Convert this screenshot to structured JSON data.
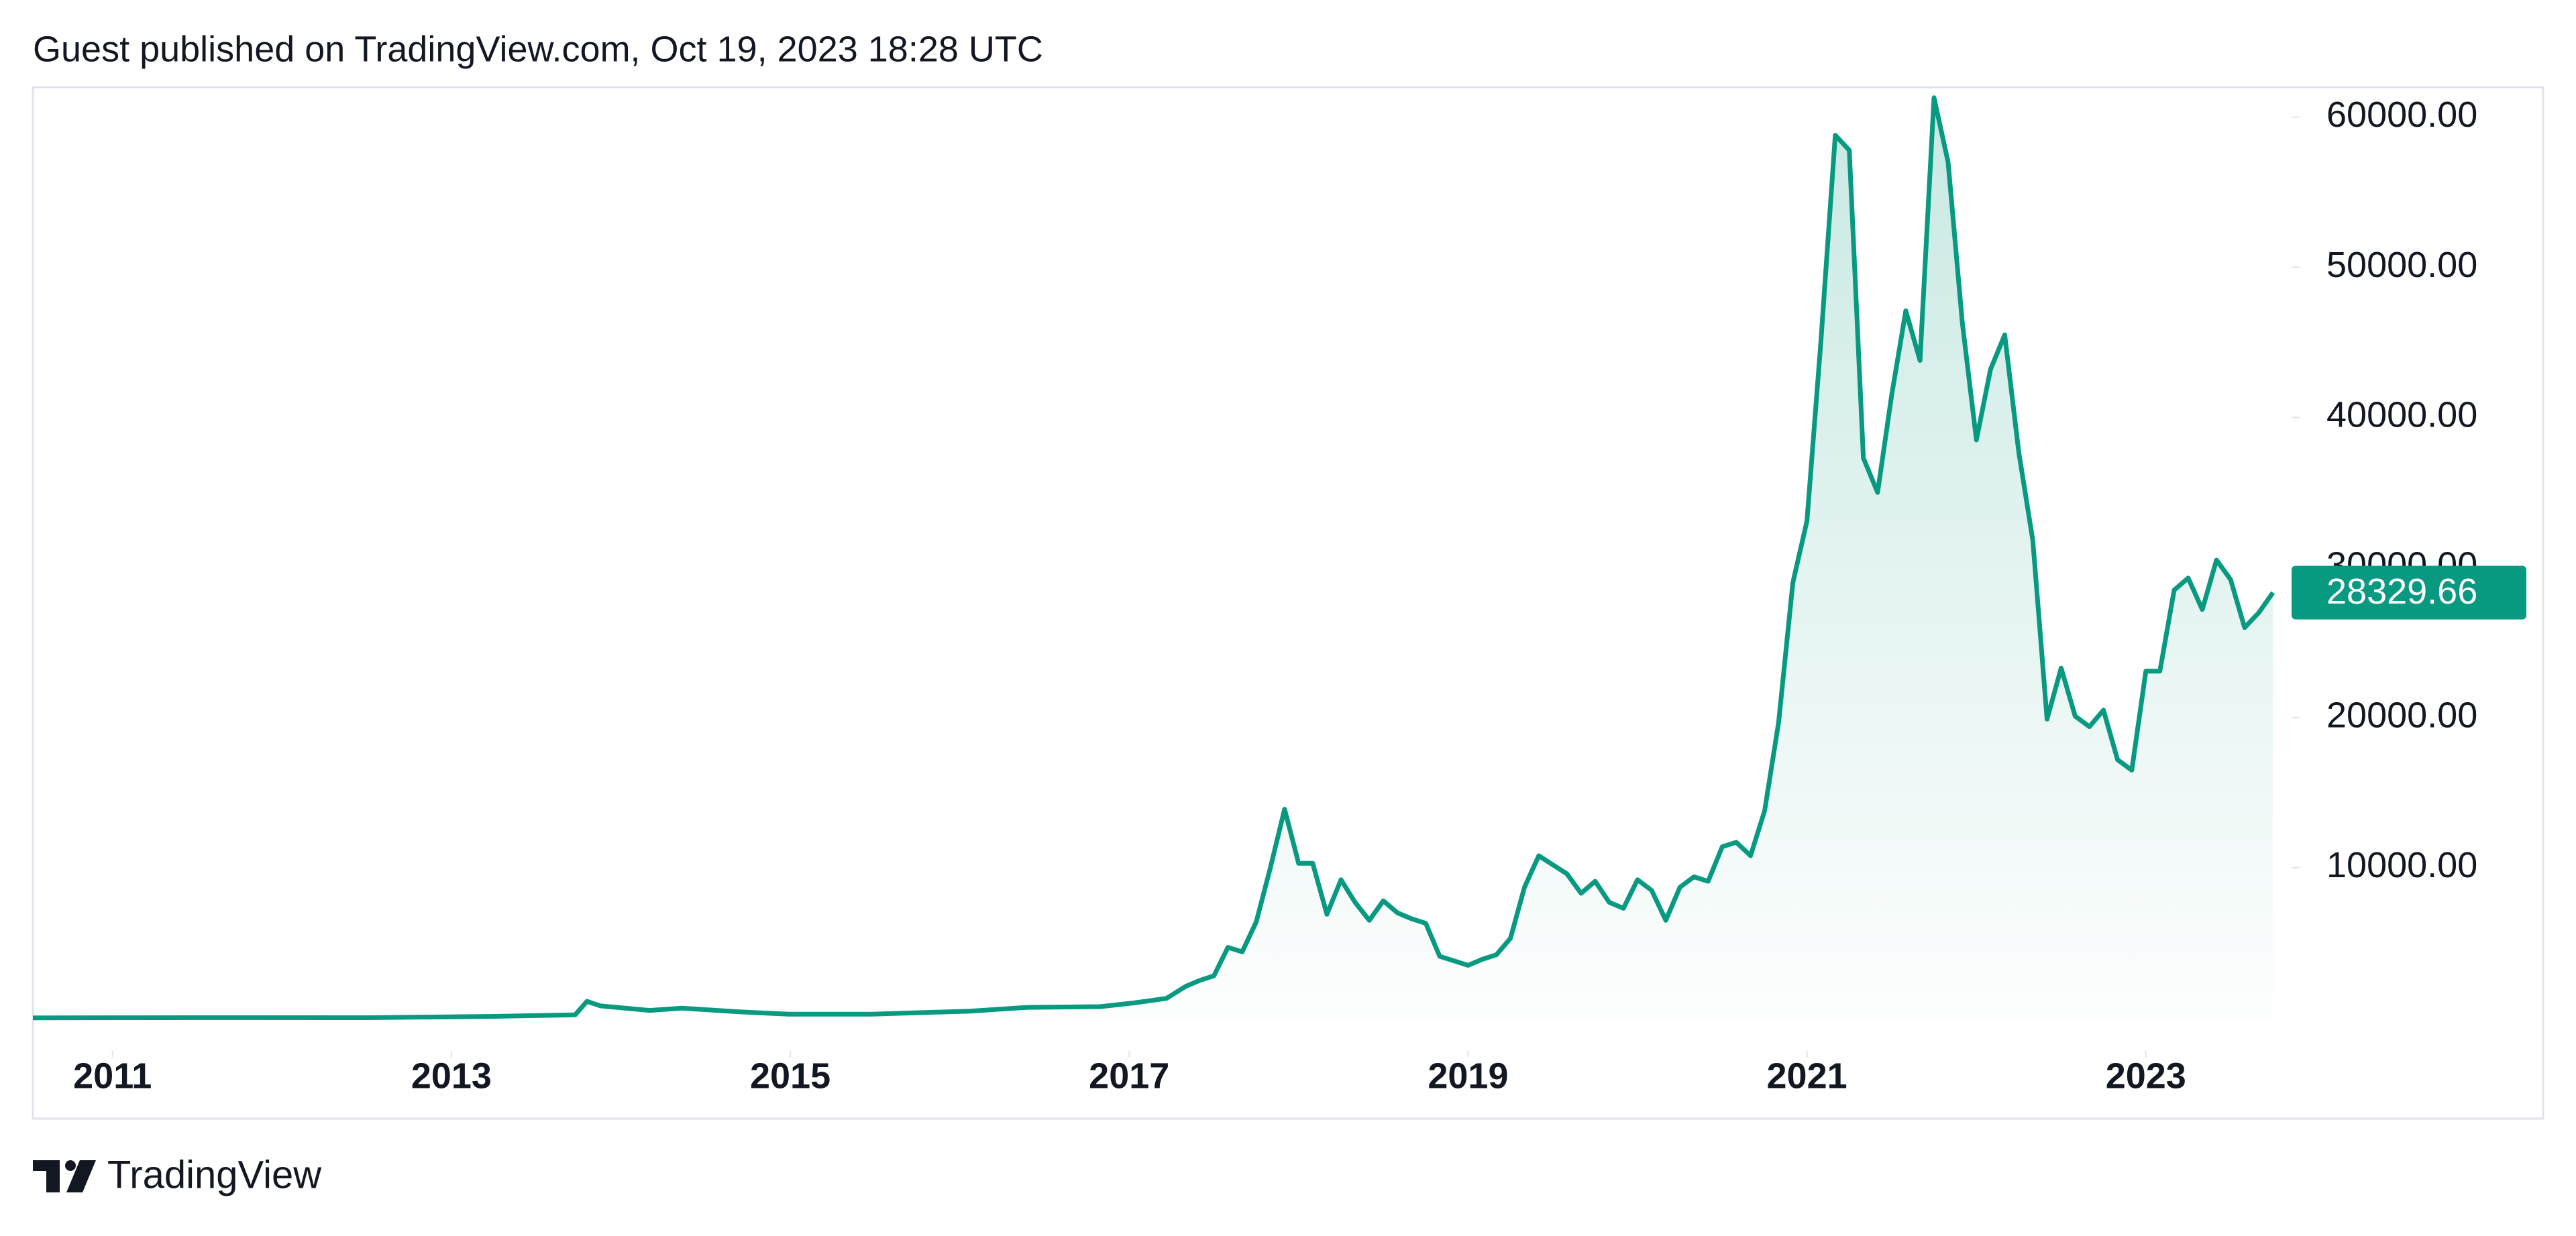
{
  "chart_data": {
    "type": "area",
    "title": "Guest published on TradingView.com, Oct 19, 2023 18:28 UTC",
    "footer": "TradingView",
    "color": "#089981",
    "grid": false,
    "x": [
      2010.53,
      2011.5,
      2012.5,
      2013.25,
      2013.73,
      2013.8,
      2013.88,
      2014.17,
      2014.36,
      2014.7,
      2014.99,
      2015.48,
      2016.06,
      2016.4,
      2016.83,
      2017.03,
      2017.22,
      2017.333,
      2017.417,
      2017.5,
      2017.583,
      2017.667,
      2017.75,
      2017.833,
      2017.917,
      2018.0,
      2018.083,
      2018.167,
      2018.25,
      2018.333,
      2018.417,
      2018.5,
      2018.583,
      2018.667,
      2018.75,
      2018.833,
      2018.917,
      2019.0,
      2019.083,
      2019.167,
      2019.25,
      2019.333,
      2019.417,
      2019.5,
      2019.583,
      2019.667,
      2019.75,
      2019.833,
      2019.917,
      2020.0,
      2020.083,
      2020.167,
      2020.25,
      2020.333,
      2020.417,
      2020.5,
      2020.583,
      2020.667,
      2020.75,
      2020.833,
      2020.917,
      2021.0,
      2021.083,
      2021.167,
      2021.25,
      2021.333,
      2021.417,
      2021.5,
      2021.583,
      2021.667,
      2021.75,
      2021.833,
      2021.917,
      2022.0,
      2022.083,
      2022.167,
      2022.25,
      2022.333,
      2022.417,
      2022.5,
      2022.583,
      2022.667,
      2022.75,
      2022.833,
      2022.917,
      2023.0,
      2023.083,
      2023.167,
      2023.25,
      2023.333,
      2023.417,
      2023.5,
      2023.583,
      2023.667,
      2023.75
    ],
    "values": [
      0.1,
      15,
      10,
      100,
      200,
      1100,
      800,
      500,
      650,
      400,
      250,
      250,
      450,
      700,
      750,
      1000,
      1300,
      2100,
      2500,
      2800,
      4700,
      4400,
      6400,
      10000,
      13900,
      10300,
      10300,
      6900,
      9200,
      7700,
      6500,
      7800,
      7000,
      6600,
      6300,
      4100,
      3800,
      3500,
      3900,
      4200,
      5300,
      8700,
      10800,
      10200,
      9600,
      8300,
      9100,
      7700,
      7300,
      9200,
      8500,
      6500,
      8700,
      9400,
      9100,
      11400,
      11700,
      10800,
      13800,
      19700,
      29000,
      33100,
      45200,
      58800,
      57800,
      37300,
      35000,
      41500,
      47100,
      43800,
      61300,
      57000,
      46300,
      38500,
      43200,
      45500,
      37700,
      31800,
      19900,
      23300,
      20100,
      19400,
      20500,
      17200,
      16500,
      23100,
      23100,
      28500,
      29300,
      27200,
      30500,
      29200,
      26000,
      27000,
      28329.66
    ],
    "xlim": [
      2010.53,
      2023.86
    ],
    "xticks": [
      2011,
      2013,
      2015,
      2017,
      2019,
      2021,
      2023
    ],
    "ylim": [
      -2200,
      62000
    ],
    "yticks": [
      {
        "value": 10000,
        "label": "10000.00"
      },
      {
        "value": 20000,
        "label": "20000.00"
      },
      {
        "value": 30000,
        "label": "30000.00"
      },
      {
        "value": 40000,
        "label": "40000.00"
      },
      {
        "value": 50000,
        "label": "50000.00"
      },
      {
        "value": 60000,
        "label": "60000.00"
      }
    ]
  }
}
